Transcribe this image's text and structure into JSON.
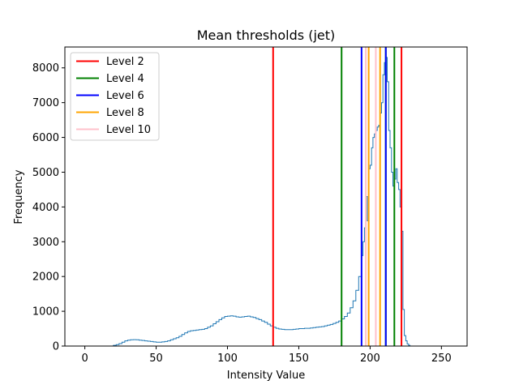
{
  "chart_data": {
    "type": "line",
    "title": "Mean thresholds (jet)",
    "xlabel": "Intensity Value",
    "ylabel": "Frequency",
    "xlim": [
      -14,
      268
    ],
    "ylim": [
      0,
      8600
    ],
    "xticks": [
      0,
      50,
      100,
      150,
      200,
      250
    ],
    "yticks": [
      0,
      1000,
      2000,
      3000,
      4000,
      5000,
      6000,
      7000,
      8000
    ],
    "grid": false,
    "legend_position": "upper left",
    "histogram": {
      "name": "",
      "color": "#1f77b4",
      "points": [
        [
          0,
          0
        ],
        [
          18,
          0
        ],
        [
          20,
          20
        ],
        [
          22,
          40
        ],
        [
          24,
          70
        ],
        [
          26,
          110
        ],
        [
          28,
          150
        ],
        [
          30,
          170
        ],
        [
          32,
          180
        ],
        [
          34,
          185
        ],
        [
          36,
          180
        ],
        [
          38,
          170
        ],
        [
          40,
          160
        ],
        [
          42,
          150
        ],
        [
          44,
          140
        ],
        [
          46,
          130
        ],
        [
          48,
          120
        ],
        [
          50,
          110
        ],
        [
          52,
          110
        ],
        [
          54,
          120
        ],
        [
          56,
          130
        ],
        [
          58,
          150
        ],
        [
          60,
          180
        ],
        [
          62,
          210
        ],
        [
          64,
          240
        ],
        [
          66,
          280
        ],
        [
          68,
          330
        ],
        [
          70,
          380
        ],
        [
          72,
          420
        ],
        [
          74,
          440
        ],
        [
          76,
          450
        ],
        [
          78,
          460
        ],
        [
          80,
          470
        ],
        [
          82,
          480
        ],
        [
          84,
          500
        ],
        [
          86,
          540
        ],
        [
          88,
          580
        ],
        [
          90,
          640
        ],
        [
          92,
          700
        ],
        [
          94,
          760
        ],
        [
          96,
          810
        ],
        [
          98,
          850
        ],
        [
          100,
          860
        ],
        [
          102,
          870
        ],
        [
          104,
          860
        ],
        [
          106,
          840
        ],
        [
          108,
          830
        ],
        [
          110,
          840
        ],
        [
          112,
          850
        ],
        [
          114,
          860
        ],
        [
          116,
          840
        ],
        [
          118,
          820
        ],
        [
          120,
          790
        ],
        [
          122,
          760
        ],
        [
          124,
          720
        ],
        [
          126,
          680
        ],
        [
          128,
          630
        ],
        [
          130,
          580
        ],
        [
          132,
          540
        ],
        [
          134,
          510
        ],
        [
          136,
          490
        ],
        [
          138,
          480
        ],
        [
          140,
          470
        ],
        [
          142,
          470
        ],
        [
          144,
          470
        ],
        [
          146,
          480
        ],
        [
          148,
          490
        ],
        [
          150,
          500
        ],
        [
          152,
          500
        ],
        [
          154,
          510
        ],
        [
          156,
          510
        ],
        [
          158,
          520
        ],
        [
          160,
          530
        ],
        [
          162,
          540
        ],
        [
          164,
          550
        ],
        [
          166,
          560
        ],
        [
          168,
          580
        ],
        [
          170,
          600
        ],
        [
          172,
          620
        ],
        [
          174,
          650
        ],
        [
          176,
          680
        ],
        [
          178,
          720
        ],
        [
          180,
          780
        ],
        [
          182,
          850
        ],
        [
          184,
          950
        ],
        [
          186,
          1100
        ],
        [
          188,
          1300
        ],
        [
          190,
          1600
        ],
        [
          192,
          2000
        ],
        [
          194,
          2600
        ],
        [
          195,
          3000
        ],
        [
          196,
          3400
        ],
        [
          197,
          4300
        ],
        [
          198,
          3600
        ],
        [
          199,
          5100
        ],
        [
          200,
          5200
        ],
        [
          201,
          5700
        ],
        [
          202,
          6000
        ],
        [
          203,
          6100
        ],
        [
          204,
          6200
        ],
        [
          205,
          6300
        ],
        [
          206,
          6350
        ],
        [
          207,
          6700
        ],
        [
          208,
          7000
        ],
        [
          209,
          7800
        ],
        [
          210,
          8150
        ],
        [
          211,
          8300
        ],
        [
          212,
          7600
        ],
        [
          213,
          6200
        ],
        [
          214,
          5700
        ],
        [
          215,
          5000
        ],
        [
          216,
          4600
        ],
        [
          217,
          4800
        ],
        [
          218,
          5100
        ],
        [
          219,
          4700
        ],
        [
          220,
          4500
        ],
        [
          221,
          4000
        ],
        [
          222,
          3300
        ],
        [
          223,
          1050
        ],
        [
          224,
          300
        ],
        [
          225,
          150
        ],
        [
          226,
          60
        ],
        [
          227,
          20
        ],
        [
          228,
          0
        ],
        [
          255,
          0
        ]
      ]
    },
    "thresholds": [
      {
        "level": "Level 2",
        "color": "#ff0000",
        "x": [
          132,
          222
        ]
      },
      {
        "level": "Level 4",
        "color": "#008000",
        "x": [
          180,
          211,
          217
        ]
      },
      {
        "level": "Level 6",
        "color": "#0000ff",
        "x": [
          194,
          211
        ]
      },
      {
        "level": "Level 8",
        "color": "#ffa500",
        "x": [
          199,
          207
        ]
      },
      {
        "level": "Level 10",
        "color": "#ffc0cb",
        "x": [
          197,
          204
        ]
      }
    ],
    "legend": [
      "Level 2",
      "Level 4",
      "Level 6",
      "Level 8",
      "Level 10"
    ]
  }
}
